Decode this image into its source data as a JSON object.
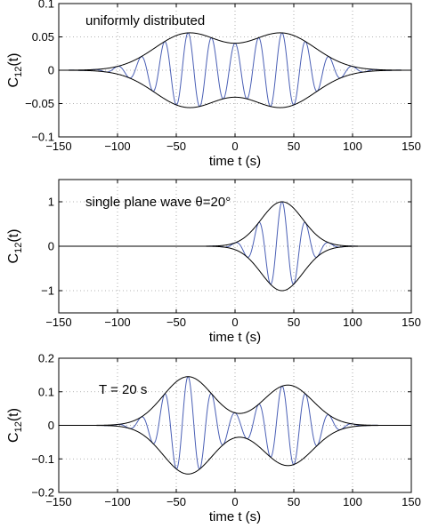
{
  "chart_data": [
    {
      "type": "line",
      "annotation": "uniformly distributed",
      "xlabel": "time t (s)",
      "ylabel": "C12(t)",
      "ylabel_main": "C",
      "ylabel_sub": "12",
      "ylabel_tail": "(t)",
      "xlim": [
        -150,
        150
      ],
      "ylim": [
        -0.1,
        0.1
      ],
      "xticks": [
        -150,
        -100,
        -50,
        0,
        50,
        100,
        150
      ],
      "xtick_labels": [
        "−150",
        "−100",
        "−50",
        "0",
        "50",
        "100",
        "150"
      ],
      "yticks": [
        -0.1,
        -0.05,
        0,
        0.05,
        0.1
      ],
      "ytick_labels": [
        "−0.1",
        "−0.05",
        "0",
        "0.05",
        "0.1"
      ],
      "grid": true,
      "envelope": {
        "peaks": [
          {
            "center": -40,
            "amplitude": 0.055,
            "width": 40
          },
          {
            "center": 40,
            "amplitude": 0.055,
            "width": 40
          }
        ]
      },
      "carrier_period_s": 20,
      "series_colors": {
        "envelope": "#000000",
        "signal": "#4a5fb5"
      }
    },
    {
      "type": "line",
      "annotation": "single plane wave θ=20°",
      "xlabel": "time t (s)",
      "ylabel": "C12(t)",
      "ylabel_main": "C",
      "ylabel_sub": "12",
      "ylabel_tail": "(t)",
      "xlim": [
        -150,
        150
      ],
      "ylim": [
        -1.5,
        1.5
      ],
      "xticks": [
        -150,
        -100,
        -50,
        0,
        50,
        100,
        150
      ],
      "xtick_labels": [
        "−150",
        "−100",
        "−50",
        "0",
        "50",
        "100",
        "150"
      ],
      "yticks": [
        -1,
        0,
        1
      ],
      "ytick_labels": [
        "−1",
        "0",
        "1"
      ],
      "grid": true,
      "envelope": {
        "peaks": [
          {
            "center": 40,
            "amplitude": 1.0,
            "width": 25
          }
        ]
      },
      "carrier_period_s": 20,
      "series_colors": {
        "envelope": "#000000",
        "signal": "#4a5fb5"
      }
    },
    {
      "type": "line",
      "annotation": "T = 20 s",
      "xlabel": "time t (s)",
      "ylabel": "C12(t)",
      "ylabel_main": "C",
      "ylabel_sub": "12",
      "ylabel_tail": "(t)",
      "xlim": [
        -150,
        150
      ],
      "ylim": [
        -0.2,
        0.2
      ],
      "xticks": [
        -150,
        -100,
        -50,
        0,
        50,
        100,
        150
      ],
      "xtick_labels": [
        "−150",
        "−100",
        "−50",
        "0",
        "50",
        "100",
        "150"
      ],
      "yticks": [
        -0.2,
        -0.1,
        0,
        0.1,
        0.2
      ],
      "ytick_labels": [
        "−0.2",
        "−0.1",
        "0",
        "0.1",
        "0.2"
      ],
      "grid": true,
      "envelope": {
        "peaks": [
          {
            "center": -40,
            "amplitude": 0.145,
            "width": 30
          },
          {
            "center": 45,
            "amplitude": 0.12,
            "width": 30
          }
        ]
      },
      "carrier_period_s": 20,
      "series_colors": {
        "envelope": "#000000",
        "signal": "#4a5fb5"
      }
    }
  ]
}
